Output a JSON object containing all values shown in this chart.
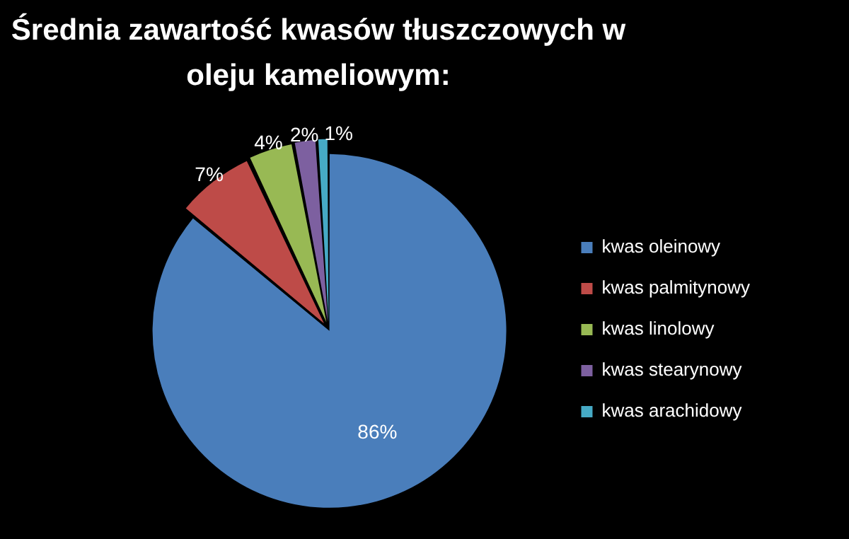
{
  "chart_data": {
    "type": "pie",
    "title": "Średnia zawartość kwasów tłuszczowych w oleju kameliowym:",
    "categories": [
      "kwas oleinowy",
      "kwas palmitynowy",
      "kwas linolowy",
      "kwas stearynowy",
      "kwas arachidowy"
    ],
    "values": [
      86,
      7,
      4,
      2,
      1
    ],
    "colors": [
      "#4a7ebb",
      "#be4b48",
      "#98b954",
      "#7d60a0",
      "#46aac5"
    ],
    "value_labels": [
      "86%",
      "7%",
      "4%",
      "2%",
      "1%"
    ],
    "legend": "right"
  }
}
